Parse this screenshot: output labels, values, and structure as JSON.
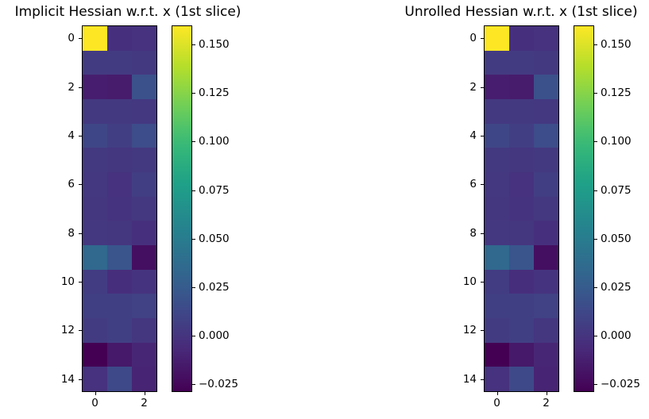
{
  "figure": {
    "background": "#ffffff",
    "text_color": "#000000"
  },
  "colormap": {
    "name": "viridis",
    "anchors": [
      [
        0.0,
        "#440154"
      ],
      [
        0.111,
        "#482878"
      ],
      [
        0.143,
        "#46327e"
      ],
      [
        0.222,
        "#3e4989"
      ],
      [
        0.286,
        "#365c8d"
      ],
      [
        0.333,
        "#31688e"
      ],
      [
        0.429,
        "#277f8e"
      ],
      [
        0.444,
        "#26828e"
      ],
      [
        0.556,
        "#1f9e89"
      ],
      [
        0.571,
        "#1fa187"
      ],
      [
        0.667,
        "#35b779"
      ],
      [
        0.714,
        "#4ac16d"
      ],
      [
        0.778,
        "#6ece58"
      ],
      [
        0.857,
        "#a0da39"
      ],
      [
        0.889,
        "#b5de2b"
      ],
      [
        1.0,
        "#fde725"
      ]
    ]
  },
  "chart_data": [
    {
      "type": "heatmap",
      "title": "Implicit Hessian w.r.t. x (1st slice)",
      "rows": 15,
      "cols": 3,
      "x_tick_labels": [
        "0",
        "2"
      ],
      "x_tick_values": [
        0,
        2
      ],
      "y_tick_labels": [
        "0",
        "2",
        "4",
        "6",
        "8",
        "10",
        "12",
        "14"
      ],
      "y_tick_values": [
        0,
        2,
        4,
        6,
        8,
        10,
        12,
        14
      ],
      "vmin": -0.0286,
      "vmax": 0.1594,
      "colorbar_tick_labels": [
        "0.150",
        "0.125",
        "0.100",
        "0.075",
        "0.050",
        "0.025",
        "0.000",
        "−0.025"
      ],
      "colorbar_tick_values": [
        0.15,
        0.125,
        0.1,
        0.075,
        0.05,
        0.025,
        0.0,
        -0.025
      ],
      "values": [
        [
          0.1594,
          -0.003,
          -0.002
        ],
        [
          0.004,
          0.004,
          0.003
        ],
        [
          -0.013,
          -0.014,
          0.018
        ],
        [
          0.003,
          0.003,
          0.002
        ],
        [
          0.011,
          0.006,
          0.015
        ],
        [
          0.003,
          0.001,
          0.003
        ],
        [
          0.002,
          -0.002,
          0.006
        ],
        [
          0.001,
          -0.001,
          0.002
        ],
        [
          0.002,
          0.001,
          -0.003
        ],
        [
          0.034,
          0.021,
          -0.021
        ],
        [
          0.005,
          -0.004,
          -0.001
        ],
        [
          0.007,
          0.007,
          0.008
        ],
        [
          0.004,
          0.007,
          0.001
        ],
        [
          -0.0286,
          -0.016,
          -0.009
        ],
        [
          -0.002,
          0.013,
          -0.01
        ]
      ]
    },
    {
      "type": "heatmap",
      "title": "Unrolled Hessian w.r.t. x (1st slice)",
      "rows": 15,
      "cols": 3,
      "x_tick_labels": [
        "0",
        "2"
      ],
      "x_tick_values": [
        0,
        2
      ],
      "y_tick_labels": [
        "0",
        "2",
        "4",
        "6",
        "8",
        "10",
        "12",
        "14"
      ],
      "y_tick_values": [
        0,
        2,
        4,
        6,
        8,
        10,
        12,
        14
      ],
      "vmin": -0.0286,
      "vmax": 0.1594,
      "colorbar_tick_labels": [
        "0.150",
        "0.125",
        "0.100",
        "0.075",
        "0.050",
        "0.025",
        "0.000",
        "−0.025"
      ],
      "colorbar_tick_values": [
        0.15,
        0.125,
        0.1,
        0.075,
        0.05,
        0.025,
        0.0,
        -0.025
      ],
      "values": [
        [
          0.1594,
          -0.003,
          -0.002
        ],
        [
          0.004,
          0.004,
          0.003
        ],
        [
          -0.013,
          -0.014,
          0.018
        ],
        [
          0.003,
          0.003,
          0.002
        ],
        [
          0.011,
          0.006,
          0.015
        ],
        [
          0.003,
          0.001,
          0.003
        ],
        [
          0.002,
          -0.002,
          0.006
        ],
        [
          0.001,
          -0.001,
          0.002
        ],
        [
          0.002,
          0.001,
          -0.003
        ],
        [
          0.034,
          0.021,
          -0.021
        ],
        [
          0.005,
          -0.004,
          -0.001
        ],
        [
          0.007,
          0.007,
          0.008
        ],
        [
          0.004,
          0.007,
          0.001
        ],
        [
          -0.0286,
          -0.016,
          -0.009
        ],
        [
          -0.002,
          0.013,
          -0.01
        ]
      ]
    }
  ]
}
